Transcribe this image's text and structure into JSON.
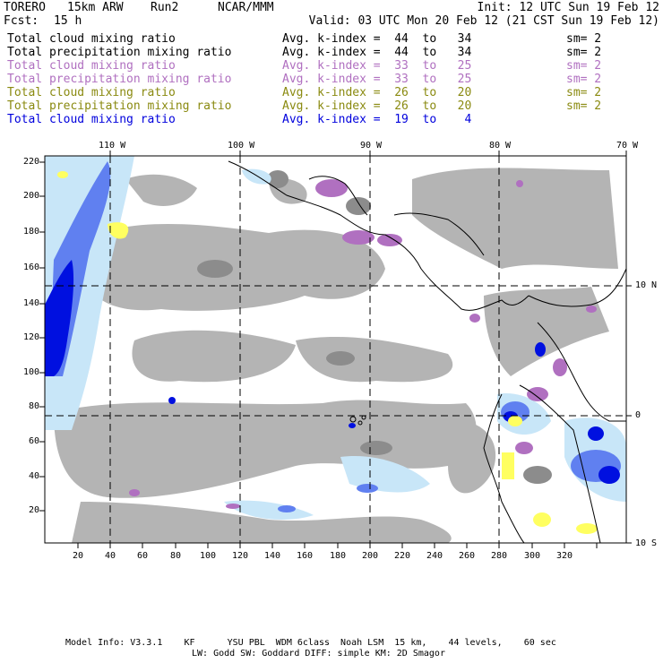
{
  "header": {
    "model": "TORERO",
    "grid": "15km ARW",
    "run": "Run2",
    "org": "NCAR/MMM",
    "init": "Init: 12 UTC Sun 19 Feb 12",
    "fcst_label": "Fcst:",
    "fcst_value": "15 h",
    "valid": "Valid: 03 UTC Mon 20 Feb 12 (21 CST Sun 19 Feb 12)"
  },
  "legend": [
    {
      "field": "Total cloud mixing ratio",
      "kindex": "Avg. k-index =  44  to   34",
      "sm": "sm= 2",
      "color": "#000000"
    },
    {
      "field": "Total precipitation mixing ratio",
      "kindex": "Avg. k-index =  44  to   34",
      "sm": "sm= 2",
      "color": "#000000"
    },
    {
      "field": "Total cloud mixing ratio",
      "kindex": "Avg. k-index =  33  to   25",
      "sm": "sm= 2",
      "color": "#b070c0"
    },
    {
      "field": "Total precipitation mixing ratio",
      "kindex": "Avg. k-index =  33  to   25",
      "sm": "sm= 2",
      "color": "#b070c0"
    },
    {
      "field": "Total cloud mixing ratio",
      "kindex": "Avg. k-index =  26  to   20",
      "sm": "sm= 2",
      "color": "#8a8a10"
    },
    {
      "field": "Total precipitation mixing ratio",
      "kindex": "Avg. k-index =  26  to   20",
      "sm": "sm= 2",
      "color": "#8a8a10"
    },
    {
      "field": "Total cloud mixing ratio",
      "kindex": "Avg. k-index =  19  to    4",
      "sm": "",
      "color": "#0000dd"
    }
  ],
  "axes": {
    "lon_labels": [
      "110 W",
      "100 W",
      "90 W",
      "80 W",
      "70 W"
    ],
    "lat_labels": [
      "10 N",
      "0",
      "10 S"
    ],
    "x_ticks": [
      "20",
      "40",
      "60",
      "80",
      "100",
      "120",
      "140",
      "160",
      "180",
      "200",
      "220",
      "240",
      "260",
      "280",
      "300",
      "320"
    ],
    "y_ticks": [
      "220",
      "200",
      "180",
      "160",
      "140",
      "120",
      "100",
      "80",
      "60",
      "40",
      "20"
    ]
  },
  "footer": {
    "line1": "Model Info: V3.3.1    KF      YSU PBL  WDM 6class  Noah LSM  15 km,    44 levels,    60 sec",
    "line2": "LW: Godd SW: Goddard DIFF: simple KM: 2D Smagor"
  },
  "colors": {
    "gray_cloud": "#b4b4b4",
    "dark_gray": "#8c8c8c",
    "purple": "#b070c0",
    "light_blue": "#c8e6f8",
    "mid_blue": "#6080f0",
    "deep_blue": "#0010e0",
    "yellow": "#ffff60"
  }
}
